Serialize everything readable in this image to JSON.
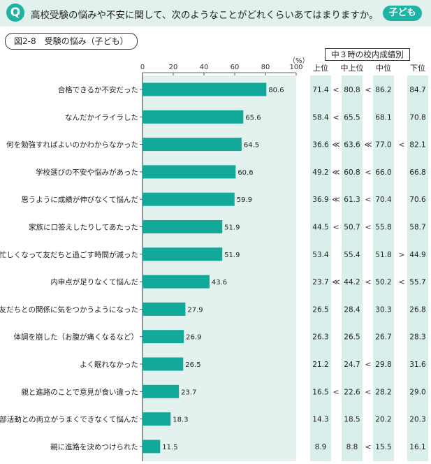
{
  "header": {
    "badge": "Q",
    "question": "高校受験の悩みや不安に関して、次のようなことがどれくらいあてはまりますか。",
    "audience_badge": "子ども"
  },
  "figure": {
    "label": "図2-8　受験の悩み（子ども）",
    "unit": "（%）",
    "grade_header": "中３時の校内成績別"
  },
  "colors": {
    "accent": "#1fb3a5",
    "bar": "#12a99b",
    "plot_bg": "#e3f2ef",
    "column_bg": "#d9efec"
  },
  "chart_data": {
    "type": "bar",
    "orientation": "horizontal",
    "xlim": [
      0,
      100
    ],
    "xticks": [
      0,
      20,
      40,
      60,
      80,
      100
    ],
    "categories": [
      "合格できるか不安だった",
      "なんだかイライラした",
      "何を勉強すればよいのかわからなかった",
      "学校選びの不安や悩みがあった",
      "思うように成績が伸びなくて悩んだ",
      "家族に口答えしたりしてあたった",
      "忙しくなって友だちと過ごす時間が減った",
      "内申点が足りなくて悩んだ",
      "友だちとの関係に気をつかうようになった",
      "体調を崩した（お腹が痛くなるなど）",
      "よく眠れなかった",
      "親と進路のことで意見が食い違った",
      "部活動との両立がうまくできなくて悩んだ",
      "親に進路を決めつけられた"
    ],
    "values": [
      80.6,
      65.6,
      64.5,
      60.6,
      59.9,
      51.9,
      51.9,
      43.6,
      27.9,
      26.9,
      26.5,
      23.7,
      18.3,
      11.5
    ],
    "table": {
      "columns": [
        "上位",
        "中上位",
        "中位",
        "下位"
      ],
      "rows": [
        [
          "71.4",
          "80.8",
          "86.2",
          "84.7"
        ],
        [
          "58.4",
          "65.5",
          "68.1",
          "70.8"
        ],
        [
          "36.6",
          "63.6",
          "77.0",
          "82.1"
        ],
        [
          "49.2",
          "60.8",
          "66.0",
          "66.8"
        ],
        [
          "36.9",
          "61.3",
          "70.4",
          "70.6"
        ],
        [
          "44.5",
          "50.7",
          "55.8",
          "58.7"
        ],
        [
          "53.4",
          "55.4",
          "51.8",
          "44.9"
        ],
        [
          "23.7",
          "44.2",
          "50.2",
          "55.7"
        ],
        [
          "26.5",
          "28.4",
          "30.3",
          "26.8"
        ],
        [
          "26.3",
          "26.5",
          "26.7",
          "28.3"
        ],
        [
          "21.2",
          "24.7",
          "29.8",
          "31.6"
        ],
        [
          "16.5",
          "22.6",
          "28.2",
          "29.0"
        ],
        [
          "14.3",
          "18.5",
          "20.2",
          "20.3"
        ],
        [
          "8.9",
          "8.8",
          "15.5",
          "16.1"
        ]
      ],
      "comparisons": [
        [
          "<",
          "<",
          ""
        ],
        [
          "<",
          "",
          ""
        ],
        [
          "≪",
          "≪",
          "<"
        ],
        [
          "≪",
          "<",
          ""
        ],
        [
          "≪",
          "<",
          ""
        ],
        [
          "<",
          "<",
          ""
        ],
        [
          "",
          "",
          ">"
        ],
        [
          "≪",
          "<",
          "<"
        ],
        [
          "",
          "",
          ""
        ],
        [
          "",
          "",
          ""
        ],
        [
          "",
          "<",
          ""
        ],
        [
          "<",
          "<",
          ""
        ],
        [
          "",
          "",
          ""
        ],
        [
          "",
          "<",
          ""
        ]
      ]
    }
  }
}
